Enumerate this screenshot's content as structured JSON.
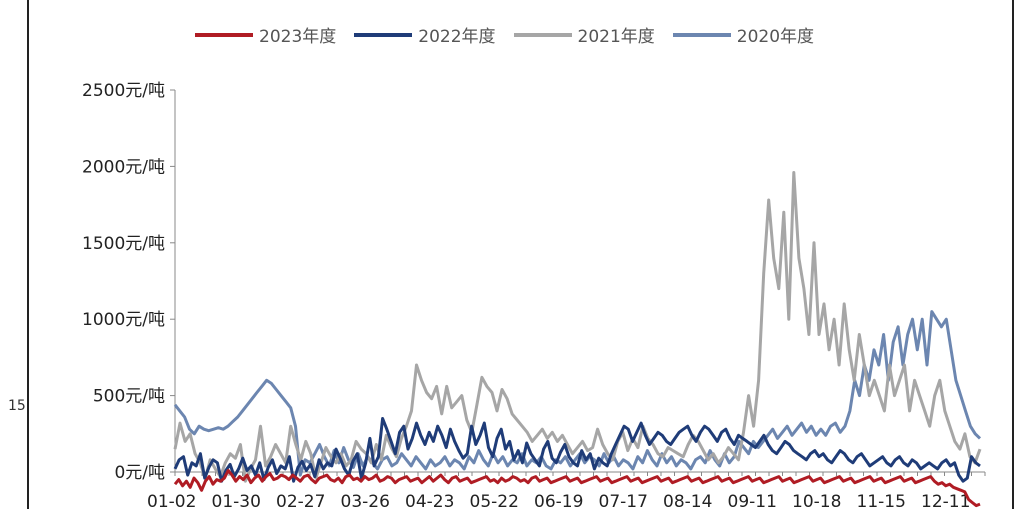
{
  "stray_label": "15",
  "chart_data": {
    "type": "line",
    "title": "",
    "xlabel": "",
    "ylabel": "",
    "ylim": [
      0,
      2500
    ],
    "yticks": [
      {
        "value": 0,
        "label": "0元/吨"
      },
      {
        "value": 500,
        "label": "500元/吨"
      },
      {
        "value": 1000,
        "label": "1000元/吨"
      },
      {
        "value": 1500,
        "label": "1500元/吨"
      },
      {
        "value": 2000,
        "label": "2000元/吨"
      },
      {
        "value": 2500,
        "label": "2500元/吨"
      }
    ],
    "xticks": [
      "01-02",
      "01-30",
      "02-27",
      "03-26",
      "04-23",
      "05-22",
      "06-19",
      "07-17",
      "08-14",
      "09-11",
      "10-18",
      "11-15",
      "12-11"
    ],
    "legend_position": "top",
    "series": [
      {
        "name": "2023年度",
        "color": "#b01c24",
        "values": [
          -80,
          -50,
          -90,
          -60,
          -100,
          -40,
          -70,
          -120,
          -60,
          -30,
          -80,
          -50,
          -60,
          -40,
          10,
          -20,
          -60,
          -30,
          -50,
          -20,
          -70,
          -40,
          -20,
          -60,
          -30,
          -10,
          -50,
          -40,
          -20,
          -30,
          -50,
          -20,
          -40,
          -60,
          -30,
          -20,
          -50,
          -70,
          -40,
          -30,
          -20,
          -50,
          -60,
          -40,
          -70,
          -30,
          -20,
          -50,
          -40,
          -60,
          -30,
          -50,
          -40,
          -20,
          -60,
          -50,
          -30,
          -40,
          -70,
          -50,
          -40,
          -30,
          -60,
          -50,
          -40,
          -70,
          -50,
          -30,
          -60,
          -40,
          -20,
          -50,
          -70,
          -40,
          -30,
          -60,
          -50,
          -40,
          -70,
          -60,
          -50,
          -40,
          -30,
          -60,
          -50,
          -70,
          -40,
          -60,
          -50,
          -30,
          -40,
          -60,
          -50,
          -70,
          -40,
          -30,
          -60,
          -50,
          -40,
          -70,
          -60,
          -50,
          -40,
          -30,
          -60,
          -50,
          -40,
          -70,
          -60,
          -50,
          -40,
          -30,
          -60,
          -50,
          -40,
          -70,
          -60,
          -50,
          -40,
          -30,
          -60,
          -50,
          -40,
          -70,
          -60,
          -50,
          -40,
          -30,
          -60,
          -50,
          -40,
          -70,
          -60,
          -50,
          -40,
          -30,
          -60,
          -50,
          -40,
          -70,
          -60,
          -50,
          -40,
          -30,
          -60,
          -50,
          -40,
          -70,
          -60,
          -50,
          -40,
          -30,
          -60,
          -50,
          -40,
          -70,
          -60,
          -50,
          -40,
          -30,
          -60,
          -50,
          -40,
          -70,
          -60,
          -50,
          -40,
          -30,
          -60,
          -50,
          -40,
          -70,
          -60,
          -50,
          -40,
          -30,
          -60,
          -50,
          -40,
          -70,
          -60,
          -50,
          -40,
          -30,
          -60,
          -50,
          -40,
          -70,
          -60,
          -50,
          -40,
          -30,
          -60,
          -50,
          -40,
          -70,
          -60,
          -50,
          -40,
          -30,
          -60,
          -80,
          -70,
          -90,
          -80,
          -100,
          -110,
          -120,
          -130,
          -180,
          -200,
          -220,
          -210
        ]
      },
      {
        "name": "2022年度",
        "color": "#1f3c78",
        "values": [
          20,
          80,
          100,
          -20,
          60,
          40,
          120,
          -40,
          30,
          80,
          60,
          -60,
          10,
          50,
          -30,
          20,
          90,
          10,
          40,
          -20,
          60,
          -50,
          30,
          80,
          -10,
          40,
          20,
          100,
          -60,
          30,
          70,
          10,
          50,
          -30,
          80,
          20,
          60,
          40,
          150,
          90,
          20,
          -20,
          70,
          120,
          -40,
          60,
          220,
          40,
          100,
          350,
          280,
          200,
          120,
          260,
          300,
          150,
          220,
          320,
          240,
          180,
          260,
          200,
          300,
          240,
          160,
          280,
          200,
          140,
          90,
          120,
          300,
          180,
          240,
          320,
          160,
          100,
          220,
          280,
          150,
          200,
          80,
          140,
          60,
          190,
          120,
          80,
          40,
          150,
          200,
          90,
          60,
          130,
          180,
          100,
          60,
          40,
          140,
          80,
          120,
          20,
          90,
          60,
          40,
          120,
          180,
          240,
          300,
          280,
          200,
          260,
          320,
          240,
          180,
          220,
          260,
          240,
          200,
          180,
          220,
          260,
          280,
          300,
          240,
          200,
          260,
          300,
          280,
          240,
          200,
          260,
          280,
          220,
          180,
          240,
          220,
          200,
          180,
          160,
          200,
          240,
          180,
          140,
          120,
          160,
          200,
          180,
          140,
          120,
          100,
          80,
          120,
          140,
          100,
          120,
          80,
          60,
          100,
          140,
          120,
          80,
          60,
          100,
          120,
          80,
          40,
          60,
          80,
          100,
          60,
          40,
          80,
          100,
          60,
          40,
          80,
          60,
          20,
          40,
          60,
          40,
          20,
          60,
          80,
          40,
          60,
          -20,
          -60,
          -40,
          100,
          60,
          40
        ]
      },
      {
        "name": "2021年度",
        "color": "#a6a6a6",
        "values": [
          150,
          320,
          200,
          250,
          120,
          60,
          -40,
          80,
          20,
          -30,
          60,
          120,
          90,
          180,
          -60,
          20,
          80,
          300,
          40,
          100,
          180,
          120,
          60,
          300,
          180,
          80,
          200,
          120,
          -40,
          60,
          160,
          100,
          60,
          120,
          40,
          80,
          200,
          150,
          120,
          60,
          180,
          80,
          240,
          160,
          100,
          220,
          300,
          400,
          700,
          600,
          520,
          480,
          560,
          380,
          560,
          420,
          460,
          500,
          340,
          260,
          440,
          620,
          560,
          520,
          400,
          540,
          480,
          380,
          340,
          300,
          260,
          200,
          240,
          280,
          220,
          260,
          200,
          240,
          180,
          120,
          160,
          200,
          140,
          160,
          280,
          180,
          120,
          80,
          200,
          260,
          140,
          220,
          160,
          300,
          220,
          180,
          120,
          100,
          160,
          140,
          120,
          100,
          180,
          240,
          200,
          140,
          80,
          120,
          60,
          100,
          160,
          120,
          80,
          260,
          500,
          300,
          600,
          1300,
          1780,
          1400,
          1200,
          1700,
          1000,
          1960,
          1400,
          1200,
          900,
          1500,
          900,
          1100,
          800,
          1000,
          700,
          1100,
          800,
          600,
          900,
          700,
          500,
          600,
          500,
          400,
          700,
          500,
          600,
          700,
          400,
          600,
          500,
          400,
          300,
          500,
          600,
          400,
          300,
          200,
          150,
          250,
          100,
          60,
          150
        ]
      },
      {
        "name": "2020年度",
        "color": "#6c86b0",
        "values": [
          440,
          400,
          360,
          280,
          250,
          300,
          280,
          270,
          280,
          290,
          280,
          300,
          330,
          360,
          400,
          440,
          480,
          520,
          560,
          600,
          580,
          540,
          500,
          460,
          420,
          300,
          -20,
          80,
          60,
          120,
          180,
          100,
          40,
          140,
          60,
          160,
          80,
          30,
          120,
          40,
          100,
          60,
          20,
          80,
          100,
          40,
          60,
          120,
          80,
          40,
          100,
          60,
          20,
          80,
          40,
          60,
          100,
          40,
          80,
          60,
          20,
          100,
          60,
          140,
          80,
          40,
          120,
          60,
          100,
          40,
          80,
          60,
          120,
          40,
          80,
          60,
          100,
          40,
          20,
          80,
          60,
          100,
          40,
          80,
          120,
          60,
          100,
          80,
          40,
          120,
          60,
          100,
          40,
          80,
          60,
          20,
          100,
          60,
          140,
          80,
          40,
          120,
          60,
          100,
          40,
          80,
          60,
          20,
          80,
          100,
          60,
          140,
          80,
          40,
          120,
          60,
          100,
          200,
          160,
          120,
          200,
          160,
          200,
          240,
          280,
          220,
          260,
          300,
          240,
          280,
          320,
          260,
          300,
          240,
          280,
          240,
          300,
          320,
          260,
          300,
          400,
          600,
          500,
          700,
          600,
          800,
          700,
          900,
          600,
          850,
          950,
          700,
          900,
          1000,
          800,
          1000,
          700,
          1050,
          1000,
          950,
          1000,
          800,
          600,
          500,
          400,
          300,
          250,
          220
        ]
      }
    ]
  }
}
